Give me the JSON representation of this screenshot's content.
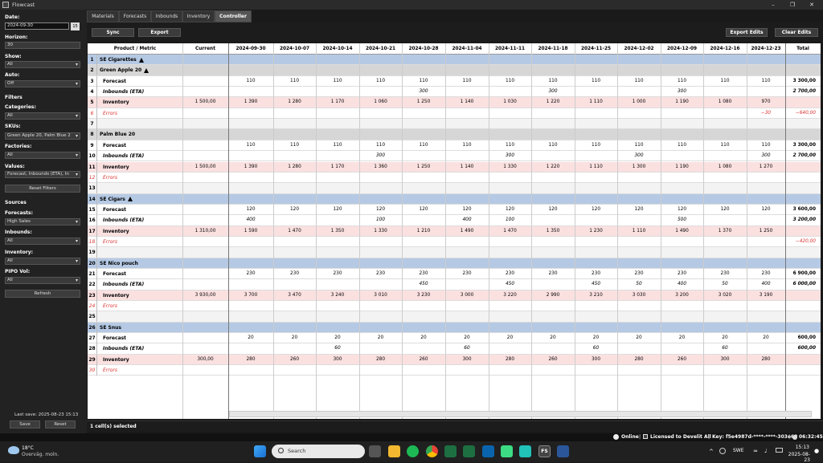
{
  "window": {
    "title": "Flowcast"
  },
  "sidebar": {
    "date_label": "Date:",
    "date_value": "2024-09-30",
    "calendar_btn": "15",
    "horizon_label": "Horizon:",
    "horizon_value": "30",
    "show_label": "Show:",
    "show_value": "All",
    "auto_label": "Auto:",
    "auto_value": "Off",
    "filters_label": "Filters",
    "categories_label": "Categories:",
    "categories_value": "All",
    "skus_label": "SKUs:",
    "skus_value": "Green Apple 20, Palm Blue 2",
    "factories_label": "Factories:",
    "factories_value": "All",
    "values_label": "Values:",
    "values_value": "Forecast, Inbounds (ETA), In",
    "reset_filters": "Reset Filters",
    "sources_label": "Sources",
    "forecasts_label": "Forecasts:",
    "forecasts_value": "High Sales",
    "inbounds_label": "Inbounds:",
    "inbounds_value": "All",
    "inventory_label": "Inventory:",
    "inventory_value": "All",
    "pipo_label": "PIPO Vol:",
    "pipo_value": "All",
    "refresh": "Refresh",
    "last_save": "Last save: 2025-08-23 15:13",
    "save": "Save",
    "reset": "Reset"
  },
  "tabs": [
    "Materials",
    "Forecasts",
    "Inbounds",
    "Inventory",
    "Controller"
  ],
  "toolbar": {
    "sync": "Sync",
    "export": "Export",
    "export_edits": "Export Edits",
    "clear_edits": "Clear Edits"
  },
  "grid": {
    "headers": [
      "Product / Metric",
      "Current",
      "2024-09-30",
      "2024-10-07",
      "2024-10-14",
      "2024-10-21",
      "2024-10-28",
      "2024-11-04",
      "2024-11-11",
      "2024-11-18",
      "2024-11-25",
      "2024-12-02",
      "2024-12-09",
      "2024-12-16",
      "2024-12-23",
      "Total"
    ],
    "rows": [
      {
        "n": "1",
        "t": "grp",
        "label": "SE Cigarettes",
        "warn": true,
        "cells": []
      },
      {
        "n": "2",
        "t": "grp2",
        "label": "Green Apple 20",
        "warn": true,
        "cells": []
      },
      {
        "n": "3",
        "t": "fc",
        "label": "Forecast",
        "cells": [
          "",
          "110",
          "110",
          "110",
          "110",
          "110",
          "110",
          "110",
          "110",
          "110",
          "110",
          "110",
          "110",
          "110",
          "3 300,00"
        ]
      },
      {
        "n": "4",
        "t": "ib",
        "label": "Inbounds (ETA)",
        "cells": [
          "",
          "",
          "",
          "",
          "",
          "300",
          "",
          "",
          "300",
          "",
          "",
          "300",
          "",
          "",
          "2 700,00"
        ]
      },
      {
        "n": "5",
        "t": "inv",
        "label": "Inventory",
        "cells": [
          "1 500,00",
          "1 390",
          "1 280",
          "1 170",
          "1 060",
          "1 250",
          "1 140",
          "1 030",
          "1 220",
          "1 110",
          "1 000",
          "1 190",
          "1 080",
          "970",
          ""
        ]
      },
      {
        "n": "6",
        "t": "err",
        "label": "Errors",
        "cells": [
          "",
          "",
          "",
          "",
          "",
          "",
          "",
          "",
          "",
          "",
          "",
          "",
          "",
          "−30",
          "−640,00"
        ]
      },
      {
        "n": "7",
        "t": "blank",
        "label": "",
        "cells": []
      },
      {
        "n": "8",
        "t": "grp2",
        "label": "Palm Blue 20",
        "warn": false,
        "cells": []
      },
      {
        "n": "9",
        "t": "fc",
        "label": "Forecast",
        "cells": [
          "",
          "110",
          "110",
          "110",
          "110",
          "110",
          "110",
          "110",
          "110",
          "110",
          "110",
          "110",
          "110",
          "110",
          "3 300,00"
        ]
      },
      {
        "n": "10",
        "t": "ib",
        "label": "Inbounds (ETA)",
        "cells": [
          "",
          "",
          "",
          "",
          "300",
          "",
          "",
          "300",
          "",
          "",
          "300",
          "",
          "",
          "300",
          "2 700,00"
        ]
      },
      {
        "n": "11",
        "t": "inv",
        "label": "Inventory",
        "cells": [
          "1 500,00",
          "1 390",
          "1 280",
          "1 170",
          "1 360",
          "1 250",
          "1 140",
          "1 330",
          "1 220",
          "1 110",
          "1 300",
          "1 190",
          "1 080",
          "1 270",
          ""
        ]
      },
      {
        "n": "12",
        "t": "err",
        "label": "Errors",
        "cells": []
      },
      {
        "n": "13",
        "t": "blank",
        "label": "",
        "cells": []
      },
      {
        "n": "14",
        "t": "grp",
        "label": "SE Cigars",
        "warn": true,
        "cells": []
      },
      {
        "n": "15",
        "t": "fc",
        "label": "Forecast",
        "cells": [
          "",
          "120",
          "120",
          "120",
          "120",
          "120",
          "120",
          "120",
          "120",
          "120",
          "120",
          "120",
          "120",
          "120",
          "3 600,00"
        ]
      },
      {
        "n": "16",
        "t": "ib",
        "label": "Inbounds (ETA)",
        "cells": [
          "",
          "400",
          "",
          "",
          "100",
          "",
          "400",
          "100",
          "",
          "",
          "",
          "500",
          "",
          "",
          "3 200,00"
        ]
      },
      {
        "n": "17",
        "t": "inv",
        "label": "Inventory",
        "cells": [
          "1 310,00",
          "1 590",
          "1 470",
          "1 350",
          "1 330",
          "1 210",
          "1 490",
          "1 470",
          "1 350",
          "1 230",
          "1 110",
          "1 490",
          "1 370",
          "1 250",
          ""
        ]
      },
      {
        "n": "18",
        "t": "err",
        "label": "Errors",
        "cells": [
          "",
          "",
          "",
          "",
          "",
          "",
          "",
          "",
          "",
          "",
          "",
          "",
          "",
          "",
          "−420,00"
        ]
      },
      {
        "n": "19",
        "t": "blank",
        "label": "",
        "cells": []
      },
      {
        "n": "20",
        "t": "grp",
        "label": "SE Nico pouch",
        "warn": false,
        "cells": []
      },
      {
        "n": "21",
        "t": "fc",
        "label": "Forecast",
        "cells": [
          "",
          "230",
          "230",
          "230",
          "230",
          "230",
          "230",
          "230",
          "230",
          "230",
          "230",
          "230",
          "230",
          "230",
          "6 900,00"
        ]
      },
      {
        "n": "22",
        "t": "ib",
        "label": "Inbounds (ETA)",
        "cells": [
          "",
          "",
          "",
          "",
          "",
          "450",
          "",
          "450",
          "",
          "450",
          "50",
          "400",
          "50",
          "400",
          "6 000,00"
        ]
      },
      {
        "n": "23",
        "t": "inv",
        "label": "Inventory",
        "cells": [
          "3 930,00",
          "3 700",
          "3 470",
          "3 240",
          "3 010",
          "3 230",
          "3 000",
          "3 220",
          "2 990",
          "3 210",
          "3 030",
          "3 200",
          "3 020",
          "3 190",
          ""
        ]
      },
      {
        "n": "24",
        "t": "err",
        "label": "Errors",
        "cells": []
      },
      {
        "n": "25",
        "t": "blank",
        "label": "",
        "cells": []
      },
      {
        "n": "26",
        "t": "grp",
        "label": "SE Snus",
        "warn": false,
        "cells": []
      },
      {
        "n": "27",
        "t": "fc",
        "label": "Forecast",
        "cells": [
          "",
          "20",
          "20",
          "20",
          "20",
          "20",
          "20",
          "20",
          "20",
          "20",
          "20",
          "20",
          "20",
          "20",
          "600,00"
        ]
      },
      {
        "n": "28",
        "t": "ib",
        "label": "Inbounds (ETA)",
        "cells": [
          "",
          "",
          "",
          "60",
          "",
          "",
          "60",
          "",
          "",
          "60",
          "",
          "",
          "60",
          "",
          "600,00"
        ]
      },
      {
        "n": "29",
        "t": "inv",
        "label": "Inventory",
        "cells": [
          "300,00",
          "280",
          "260",
          "300",
          "280",
          "260",
          "300",
          "280",
          "260",
          "300",
          "280",
          "260",
          "300",
          "280",
          ""
        ]
      },
      {
        "n": "30",
        "t": "err",
        "label": "Errors",
        "cells": []
      }
    ]
  },
  "status": {
    "selected": "1 cell(s) selected",
    "online": "Online",
    "license": "Licensed to Develit All",
    "key": "Key: f5e4987d-****-****-303e62",
    "clock": "06:32:45"
  },
  "taskbar": {
    "weather_temp": "18°C",
    "weather_desc": "Overväg. moln.",
    "search": "Search",
    "lang": "SWE",
    "time": "15:13",
    "date": "2025-08-23"
  }
}
